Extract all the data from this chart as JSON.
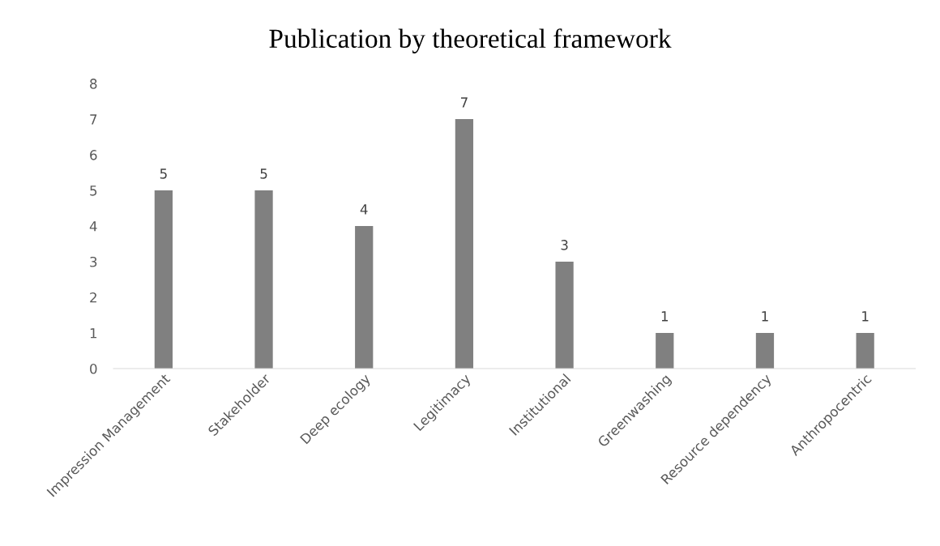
{
  "chart_data": {
    "type": "bar",
    "title": "Publication by theoretical framework",
    "categories": [
      "Impression Management",
      "Stakeholder",
      "Deep ecology",
      "Legitimacy",
      "Institutional",
      "Greenwashing",
      "Resource dependency",
      "Anthropocentric"
    ],
    "values": [
      5,
      5,
      4,
      7,
      3,
      1,
      1,
      1
    ],
    "color": "#808080",
    "ylim": [
      0,
      8
    ],
    "yticks": [
      0,
      1,
      2,
      3,
      4,
      5,
      6,
      7,
      8
    ],
    "data_labels": true,
    "grid": false,
    "legend": false
  }
}
